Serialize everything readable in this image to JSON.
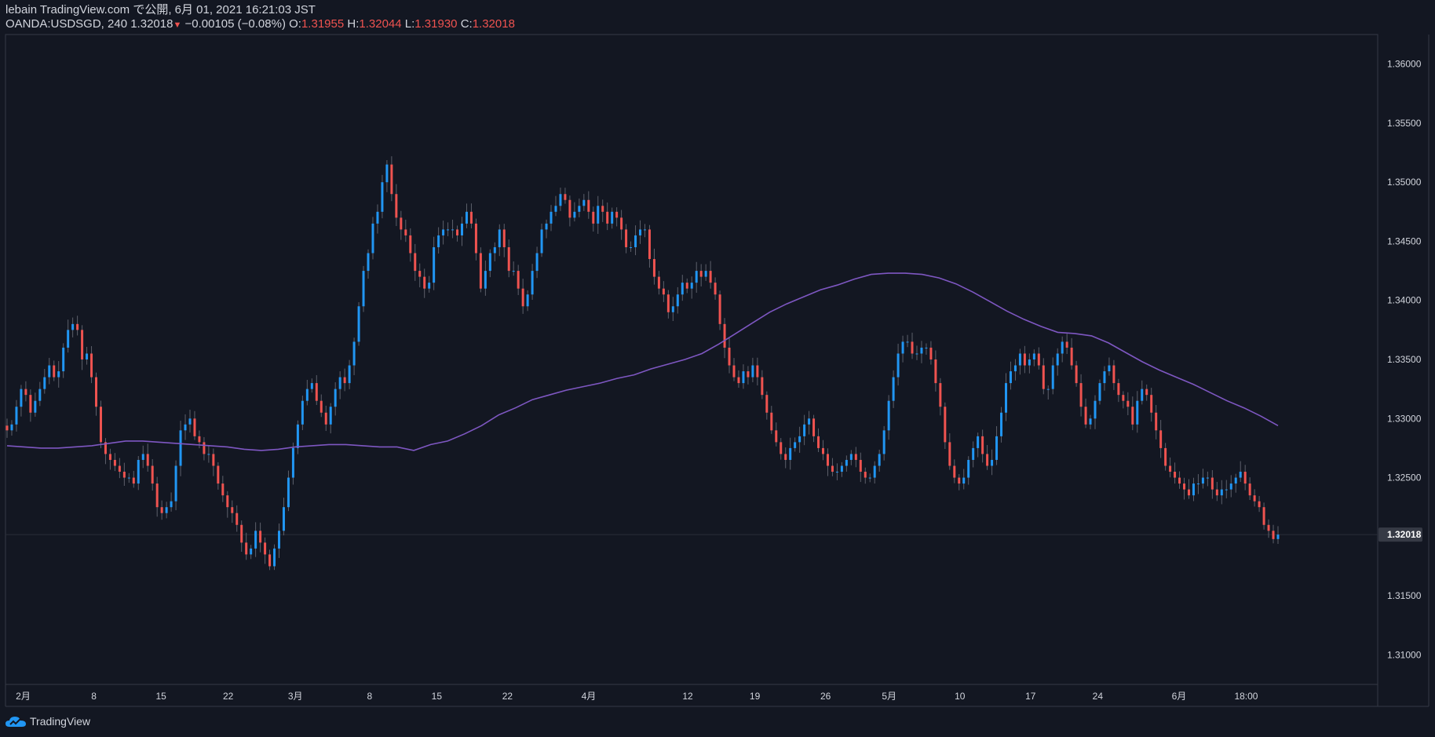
{
  "header": {
    "line1": "lebain TradingView.com で公開, 6月 01, 2021 16:21:03 JST",
    "symbol": "OANDA:USDSGD, 240",
    "last": "1.32018",
    "change": "−0.00105 (−0.08%)",
    "o_label": "O:",
    "o_value": "1.31955",
    "h_label": "H:",
    "h_value": "1.32044",
    "l_label": "L:",
    "l_value": "1.31930",
    "c_label": "C:",
    "c_value": "1.32018"
  },
  "footer": {
    "brand": "TradingView",
    "icon": "tradingview-cloud-icon"
  },
  "colors": {
    "background": "#131722",
    "up": "#2962ff",
    "up_light": "#2196f3",
    "down": "#ef5350",
    "ma": "#7e57c2",
    "axis_text": "#d1d4dc",
    "border": "#363a45"
  },
  "chart_data": {
    "type": "line",
    "title": "OANDA:USDSGD, 240",
    "xlabel": "",
    "ylabel": "",
    "ylim": [
      1.3075,
      1.3625
    ],
    "y_ticks": [
      "1.31000",
      "1.31500",
      "1.32000",
      "1.32500",
      "1.33000",
      "1.33500",
      "1.34000",
      "1.34500",
      "1.35000",
      "1.35500",
      "1.36000"
    ],
    "y_tick_values": [
      1.31,
      1.315,
      1.32,
      1.325,
      1.33,
      1.335,
      1.34,
      1.345,
      1.35,
      1.355,
      1.36
    ],
    "x_ticks": [
      "2月",
      "8",
      "15",
      "22",
      "3月",
      "8",
      "15",
      "22",
      "4月",
      "12",
      "19",
      "26",
      "5月",
      "10",
      "17",
      "24",
      "6月",
      "18:00"
    ],
    "x_tick_index": [
      5,
      25,
      44,
      63,
      82,
      103,
      122,
      142,
      165,
      193,
      212,
      232,
      250,
      270,
      290,
      309,
      332,
      351
    ],
    "x_range_index": [
      0,
      360
    ],
    "last_price_label": "1.32018",
    "last_price": 1.32018,
    "series": [
      {
        "name": "USDSGD",
        "values": [
          1.329,
          1.3295,
          1.331,
          1.3325,
          1.332,
          1.3305,
          1.3315,
          1.3325,
          1.3335,
          1.3345,
          1.3335,
          1.334,
          1.336,
          1.3375,
          1.338,
          1.3375,
          1.335,
          1.3355,
          1.3335,
          1.331,
          1.328,
          1.327,
          1.3265,
          1.326,
          1.3255,
          1.325,
          1.325,
          1.3245,
          1.3265,
          1.327,
          1.326,
          1.3245,
          1.3225,
          1.322,
          1.3225,
          1.323,
          1.326,
          1.329,
          1.3295,
          1.33,
          1.3285,
          1.328,
          1.327,
          1.327,
          1.326,
          1.3245,
          1.3235,
          1.3225,
          1.322,
          1.321,
          1.3195,
          1.3185,
          1.319,
          1.3205,
          1.3195,
          1.3185,
          1.3175,
          1.319,
          1.3205,
          1.3225,
          1.325,
          1.3275,
          1.3295,
          1.3315,
          1.3325,
          1.333,
          1.3315,
          1.3305,
          1.3295,
          1.331,
          1.3325,
          1.3335,
          1.333,
          1.3345,
          1.3365,
          1.3395,
          1.3425,
          1.344,
          1.3465,
          1.3475,
          1.35,
          1.3515,
          1.349,
          1.347,
          1.346,
          1.3455,
          1.344,
          1.3425,
          1.342,
          1.341,
          1.3415,
          1.3445,
          1.3455,
          1.346,
          1.346,
          1.346,
          1.3455,
          1.3465,
          1.3475,
          1.3465,
          1.344,
          1.341,
          1.3425,
          1.344,
          1.3445,
          1.346,
          1.3445,
          1.3425,
          1.3425,
          1.341,
          1.3395,
          1.3405,
          1.3425,
          1.344,
          1.346,
          1.3465,
          1.3475,
          1.348,
          1.349,
          1.3485,
          1.347,
          1.3475,
          1.348,
          1.3485,
          1.3475,
          1.3465,
          1.348,
          1.3475,
          1.3465,
          1.3475,
          1.347,
          1.346,
          1.3445,
          1.3445,
          1.3455,
          1.346,
          1.346,
          1.3435,
          1.342,
          1.341,
          1.3405,
          1.339,
          1.3395,
          1.3405,
          1.3415,
          1.341,
          1.3415,
          1.3425,
          1.342,
          1.3425,
          1.3415,
          1.3405,
          1.338,
          1.336,
          1.3345,
          1.3335,
          1.333,
          1.334,
          1.3335,
          1.3345,
          1.3335,
          1.332,
          1.3305,
          1.329,
          1.328,
          1.327,
          1.3265,
          1.3275,
          1.328,
          1.3285,
          1.3295,
          1.33,
          1.3285,
          1.3275,
          1.327,
          1.326,
          1.3255,
          1.3255,
          1.326,
          1.3265,
          1.327,
          1.3265,
          1.3255,
          1.325,
          1.325,
          1.326,
          1.327,
          1.329,
          1.3315,
          1.3335,
          1.3355,
          1.3365,
          1.3365,
          1.3355,
          1.3355,
          1.336,
          1.336,
          1.335,
          1.333,
          1.331,
          1.328,
          1.326,
          1.325,
          1.3245,
          1.325,
          1.3265,
          1.3275,
          1.3285,
          1.327,
          1.326,
          1.3265,
          1.3285,
          1.3305,
          1.333,
          1.334,
          1.3345,
          1.3355,
          1.3345,
          1.335,
          1.3355,
          1.3345,
          1.3325,
          1.3325,
          1.3345,
          1.3355,
          1.3365,
          1.336,
          1.3345,
          1.333,
          1.331,
          1.3295,
          1.33,
          1.3315,
          1.333,
          1.334,
          1.3345,
          1.333,
          1.332,
          1.3315,
          1.331,
          1.3295,
          1.3315,
          1.3325,
          1.332,
          1.3305,
          1.329,
          1.3275,
          1.326,
          1.3255,
          1.325,
          1.3245,
          1.324,
          1.3235,
          1.3245,
          1.3245,
          1.325,
          1.325,
          1.324,
          1.3235,
          1.324,
          1.324,
          1.3245,
          1.325,
          1.3255,
          1.3245,
          1.3235,
          1.323,
          1.3225,
          1.321,
          1.3205,
          1.3198,
          1.32018
        ]
      },
      {
        "name": "MA",
        "values": [
          1.3277,
          1.3276,
          1.3275,
          1.3275,
          1.3276,
          1.3277,
          1.3279,
          1.3281,
          1.3281,
          1.328,
          1.3279,
          1.3278,
          1.3277,
          1.3276,
          1.3274,
          1.3273,
          1.3274,
          1.3276,
          1.3277,
          1.3278,
          1.3278,
          1.3277,
          1.3276,
          1.3276,
          1.3273,
          1.3278,
          1.3281,
          1.3287,
          1.3294,
          1.3303,
          1.3309,
          1.3316,
          1.332,
          1.3324,
          1.3327,
          1.333,
          1.3334,
          1.3337,
          1.3342,
          1.3346,
          1.335,
          1.3355,
          1.3363,
          1.3372,
          1.3381,
          1.339,
          1.3397,
          1.3403,
          1.3409,
          1.3413,
          1.3418,
          1.3422,
          1.3423,
          1.3423,
          1.3422,
          1.3419,
          1.3414,
          1.3407,
          1.3399,
          1.3391,
          1.3384,
          1.3378,
          1.3373,
          1.3372,
          1.337,
          1.3364,
          1.3356,
          1.3348,
          1.3341,
          1.3335,
          1.3329,
          1.3322,
          1.3315,
          1.3309,
          1.3302,
          1.3294
        ]
      }
    ]
  }
}
